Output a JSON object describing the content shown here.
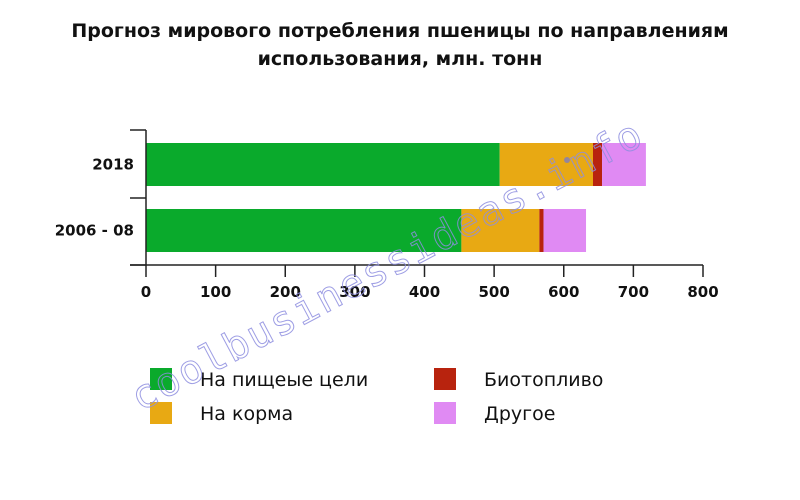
{
  "watermark": "coolbusinessideas.info",
  "chart_data": {
    "type": "bar",
    "orientation": "horizontal",
    "stacked": true,
    "title_lines": [
      "Прогноз мирового потребления пшеницы по направлениям",
      "использования, млн. тонн"
    ],
    "categories": [
      "2018",
      "2006 - 08"
    ],
    "series": [
      {
        "name": "На пищеые цели",
        "color": "#0aaa2c",
        "values": [
          508,
          453
        ]
      },
      {
        "name": "На корма",
        "color": "#e8a913",
        "values": [
          134,
          112
        ]
      },
      {
        "name": "Биотопливо",
        "color": "#b8230e",
        "values": [
          13,
          6
        ]
      },
      {
        "name": "Другое",
        "color": "#e08af3",
        "values": [
          63,
          61
        ]
      }
    ],
    "xlim": [
      0,
      800
    ],
    "xticks": [
      0,
      100,
      200,
      300,
      400,
      500,
      600,
      700,
      800
    ],
    "grid": false,
    "legend_position": "bottom"
  }
}
